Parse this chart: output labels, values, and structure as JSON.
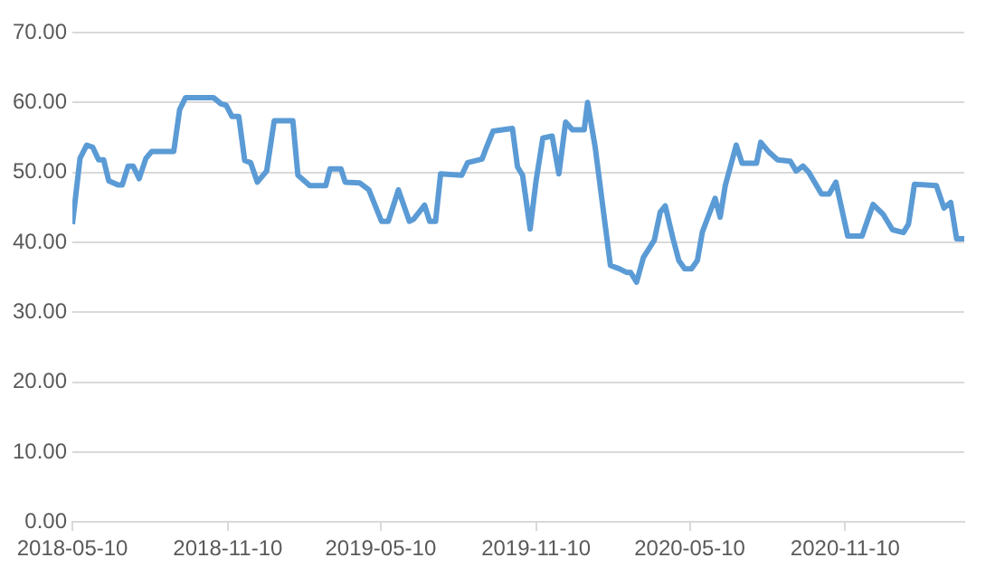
{
  "chart_data": {
    "type": "line",
    "x": [
      "2018-05-10",
      "2018-05-19",
      "2018-05-27",
      "2018-06-03",
      "2018-06-10",
      "2018-06-16",
      "2018-06-22",
      "2018-07-03",
      "2018-07-08",
      "2018-07-15",
      "2018-07-21",
      "2018-07-28",
      "2018-08-05",
      "2018-08-12",
      "2018-09-07",
      "2018-09-14",
      "2018-09-21",
      "2018-10-24",
      "2018-11-02",
      "2018-11-08",
      "2018-11-15",
      "2018-11-23",
      "2018-11-30",
      "2018-12-07",
      "2018-12-15",
      "2018-12-26",
      "2019-01-04",
      "2019-01-26",
      "2019-02-01",
      "2019-02-15",
      "2019-03-06",
      "2019-03-11",
      "2019-03-24",
      "2019-03-29",
      "2019-04-15",
      "2019-04-26",
      "2019-05-11",
      "2019-05-19",
      "2019-05-31",
      "2019-06-13",
      "2019-06-18",
      "2019-07-01",
      "2019-07-07",
      "2019-07-14",
      "2019-07-20",
      "2019-08-14",
      "2019-08-21",
      "2019-09-07",
      "2019-09-12",
      "2019-09-20",
      "2019-10-13",
      "2019-10-19",
      "2019-10-25",
      "2019-11-03",
      "2019-11-10",
      "2019-11-18",
      "2019-11-29",
      "2019-12-07",
      "2019-12-15",
      "2019-12-23",
      "2020-01-06",
      "2020-01-10",
      "2020-01-19",
      "2020-02-06",
      "2020-02-17",
      "2020-02-25",
      "2020-03-01",
      "2020-03-08",
      "2020-03-16",
      "2020-03-29",
      "2020-04-05",
      "2020-04-11",
      "2020-04-20",
      "2020-04-27",
      "2020-05-04",
      "2020-05-12",
      "2020-05-19",
      "2020-05-25",
      "2020-06-09",
      "2020-06-15",
      "2020-06-21",
      "2020-07-04",
      "2020-07-11",
      "2020-07-28",
      "2020-08-02",
      "2020-08-11",
      "2020-08-22",
      "2020-09-06",
      "2020-09-13",
      "2020-09-21",
      "2020-09-28",
      "2020-10-13",
      "2020-10-22",
      "2020-10-30",
      "2020-11-13",
      "2020-11-30",
      "2020-12-13",
      "2020-12-25",
      "2021-01-05",
      "2021-01-18",
      "2021-01-24",
      "2021-01-31",
      "2021-02-26",
      "2021-03-07",
      "2021-03-15",
      "2021-03-22",
      "2021-03-31"
    ],
    "values": [
      42.6,
      52.0,
      53.9,
      53.6,
      51.8,
      51.8,
      48.8,
      48.2,
      48.2,
      50.9,
      50.9,
      49.1,
      52.0,
      53.0,
      53.0,
      59.0,
      60.7,
      60.7,
      59.8,
      59.6,
      58.0,
      58.0,
      51.7,
      51.4,
      48.6,
      50.2,
      57.4,
      57.4,
      49.6,
      48.1,
      48.1,
      50.5,
      50.5,
      48.6,
      48.5,
      47.5,
      43.0,
      43.0,
      47.5,
      43.0,
      43.3,
      45.3,
      43.0,
      43.0,
      49.8,
      49.6,
      51.4,
      51.9,
      53.5,
      55.9,
      56.3,
      50.8,
      49.6,
      41.9,
      48.8,
      54.9,
      55.2,
      49.8,
      57.2,
      56.1,
      56.1,
      60.0,
      53.6,
      36.7,
      36.2,
      35.7,
      35.7,
      34.3,
      37.8,
      40.3,
      44.3,
      45.2,
      40.6,
      37.4,
      36.2,
      36.2,
      37.4,
      41.5,
      46.3,
      43.6,
      48.1,
      53.9,
      51.3,
      51.3,
      54.3,
      53.0,
      51.8,
      51.6,
      50.2,
      50.9,
      50.0,
      46.9,
      46.9,
      48.6,
      40.9,
      40.9,
      45.4,
      44.0,
      41.8,
      41.4,
      42.6,
      48.3,
      48.1,
      44.9,
      45.7,
      40.5,
      40.5
    ],
    "color": "#5b9bd5",
    "xlim": [
      "2018-05-10",
      "2021-03-31"
    ],
    "xticks": [
      "2018-05-10",
      "2018-11-10",
      "2019-05-10",
      "2019-11-10",
      "2020-05-10",
      "2020-11-10"
    ],
    "ylim": [
      0,
      70
    ],
    "yticks": [
      {
        "value": 0,
        "label": "0.00"
      },
      {
        "value": 10,
        "label": "10.00"
      },
      {
        "value": 20,
        "label": "20.00"
      },
      {
        "value": 30,
        "label": "30.00"
      },
      {
        "value": 40,
        "label": "40.00"
      },
      {
        "value": 50,
        "label": "50.00"
      },
      {
        "value": 60,
        "label": "60.00"
      },
      {
        "value": 70,
        "label": "70.00"
      }
    ],
    "grid": "y",
    "legend": false,
    "marker": "none"
  }
}
